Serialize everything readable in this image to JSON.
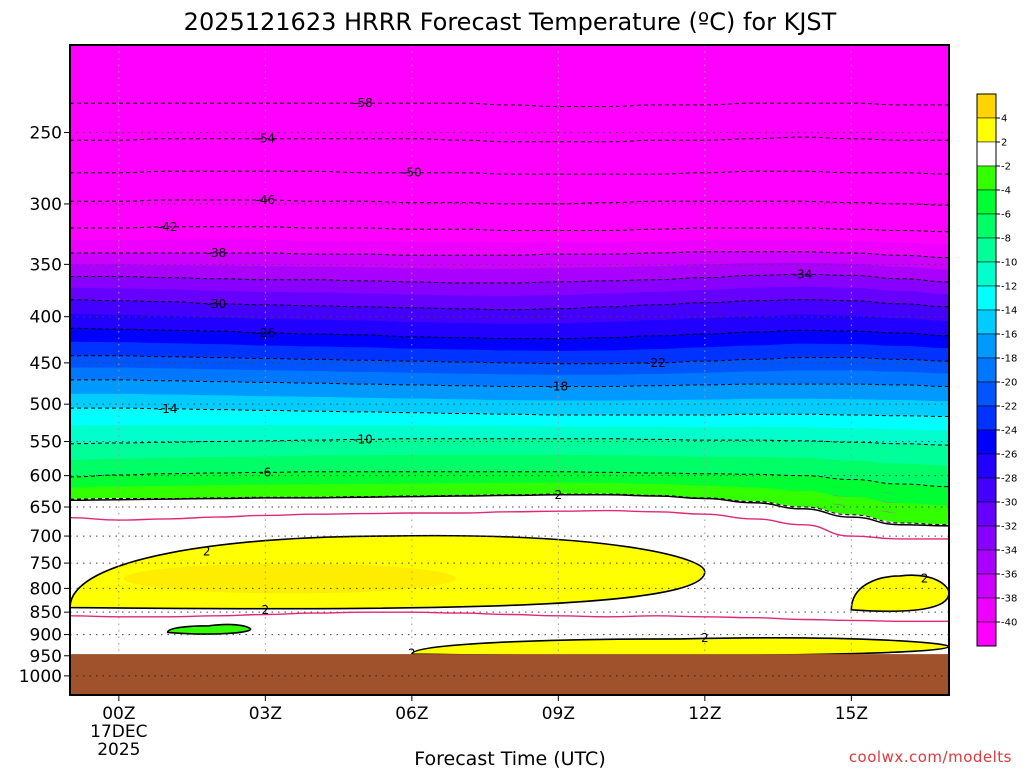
{
  "title": "2025121623 HRRR Forecast Temperature (ºC) for KJST",
  "credit": "coolwx.com/modelts",
  "chart_data": {
    "type": "heatmap",
    "title": "2025121623 HRRR Forecast Temperature (ºC) for KJST",
    "xlabel": "Forecast Time (UTC)",
    "ylabel": "",
    "x_ticks": [
      {
        "hour": 0,
        "label": "00Z",
        "sub": [
          "17DEC",
          "2025"
        ]
      },
      {
        "hour": 3,
        "label": "03Z",
        "sub": []
      },
      {
        "hour": 6,
        "label": "06Z",
        "sub": []
      },
      {
        "hour": 9,
        "label": "09Z",
        "sub": []
      },
      {
        "hour": 12,
        "label": "12Z",
        "sub": []
      },
      {
        "hour": 15,
        "label": "15Z",
        "sub": []
      }
    ],
    "x_range_hours": [
      -1,
      17
    ],
    "y_ticks": [
      250,
      300,
      350,
      400,
      450,
      500,
      550,
      600,
      650,
      700,
      750,
      800,
      850,
      900,
      950,
      1000
    ],
    "y_range_hPa": [
      200,
      1050
    ],
    "y_scale": "log-pressure",
    "ground_level_hPa": 946,
    "hours": [
      -1,
      0,
      1,
      2,
      3,
      4,
      5,
      6,
      7,
      8,
      9,
      10,
      11,
      12,
      13,
      14,
      15,
      16,
      17
    ],
    "contour_levels": [
      {
        "value": -58,
        "p": [
          232,
          232,
          232,
          232,
          232,
          232,
          232,
          232,
          232,
          233,
          234,
          234,
          233,
          233,
          232,
          232,
          232,
          233,
          233
        ],
        "label_hour": 5
      },
      {
        "value": -54,
        "p": [
          255,
          255,
          254,
          254,
          254,
          254,
          254,
          254,
          255,
          256,
          256,
          256,
          255,
          255,
          254,
          253,
          254,
          255,
          255
        ],
        "label_hour": 3
      },
      {
        "value": -50,
        "p": [
          277,
          277,
          276,
          276,
          276,
          276,
          277,
          277,
          277,
          278,
          278,
          278,
          278,
          277,
          276,
          276,
          277,
          277,
          278
        ],
        "label_hour": 6
      },
      {
        "value": -46,
        "p": [
          298,
          298,
          297,
          297,
          297,
          298,
          298,
          299,
          299,
          300,
          300,
          299,
          298,
          298,
          298,
          298,
          299,
          300,
          301
        ],
        "label_hour": 3
      },
      {
        "value": -42,
        "p": [
          319,
          319,
          318,
          318,
          318,
          319,
          319,
          320,
          320,
          321,
          321,
          321,
          320,
          319,
          319,
          319,
          320,
          321,
          322
        ],
        "label_hour": 1
      },
      {
        "value": -38,
        "p": [
          340,
          340,
          340,
          340,
          340,
          341,
          341,
          342,
          342,
          342,
          341,
          341,
          340,
          339,
          339,
          339,
          340,
          342,
          344
        ],
        "label_hour": 2
      },
      {
        "value": -34,
        "p": [
          361,
          361,
          362,
          363,
          364,
          364,
          365,
          366,
          367,
          367,
          366,
          365,
          364,
          362,
          360,
          359,
          360,
          363,
          366
        ],
        "label_hour": 14
      },
      {
        "value": -30,
        "p": [
          383,
          384,
          385,
          387,
          388,
          389,
          390,
          391,
          392,
          393,
          392,
          390,
          388,
          386,
          384,
          383,
          384,
          387,
          390
        ],
        "label_hour": 2
      },
      {
        "value": -26,
        "p": [
          412,
          413,
          414,
          415,
          417,
          418,
          419,
          421,
          422,
          423,
          423,
          422,
          420,
          418,
          416,
          414,
          415,
          417,
          420
        ],
        "label_hour": 3
      },
      {
        "value": -22,
        "p": [
          442,
          442,
          443,
          444,
          445,
          446,
          447,
          448,
          449,
          450,
          451,
          451,
          450,
          448,
          446,
          444,
          444,
          446,
          448
        ],
        "label_hour": 11
      },
      {
        "value": -18,
        "p": [
          470,
          470,
          471,
          472,
          473,
          474,
          475,
          476,
          477,
          478,
          478,
          478,
          477,
          476,
          475,
          475,
          475,
          476,
          478
        ],
        "label_hour": 9
      },
      {
        "value": -14,
        "p": [
          505,
          505,
          506,
          507,
          508,
          509,
          510,
          511,
          512,
          513,
          514,
          514,
          514,
          514,
          513,
          513,
          514,
          515,
          516
        ],
        "label_hour": 1
      },
      {
        "value": -10,
        "p": [
          553,
          552,
          551,
          550,
          549,
          548,
          547,
          546,
          546,
          546,
          546,
          546,
          547,
          548,
          548,
          549,
          551,
          553,
          555
        ],
        "label_hour": 5
      },
      {
        "value": -6,
        "p": [
          602,
          599,
          597,
          596,
          595,
          594,
          594,
          594,
          594,
          594,
          594,
          595,
          596,
          597,
          598,
          600,
          606,
          613,
          617
        ],
        "label_hour": 3
      },
      {
        "value": -2,
        "p": [
          637,
          636,
          636,
          635,
          634,
          634,
          633,
          632,
          631,
          630,
          629,
          629,
          631,
          635,
          641,
          650,
          663,
          677,
          680
        ],
        "label_hour": null
      },
      {
        "value": 2,
        "p": [
          639,
          638,
          637,
          636,
          635,
          635,
          634,
          633,
          632,
          631,
          630,
          630,
          632,
          636,
          643,
          653,
          667,
          680,
          682
        ],
        "label_hour": 9
      }
    ],
    "freezing_isotherm_0C": [
      {
        "segment": "upper",
        "p": [
          668,
          672,
          670,
          667,
          664,
          662,
          661,
          660,
          660,
          658,
          657,
          656,
          658,
          662,
          670,
          680,
          700,
          705,
          705
        ]
      },
      {
        "segment": "lower",
        "p": [
          858,
          860,
          860,
          858,
          855,
          852,
          850,
          850,
          852,
          855,
          858,
          860,
          858,
          860,
          862,
          866,
          868,
          870,
          870
        ]
      }
    ],
    "features": [
      {
        "name": "warm layer above 2C (0-2C to +4C band)",
        "range_C": [
          2,
          4
        ],
        "hour_span": [
          -1,
          12
        ],
        "p_bottom": 840,
        "p_top": 700
      },
      {
        "name": "warm patch above 2C",
        "range_C": [
          2,
          4
        ],
        "hour_span": [
          15,
          17
        ],
        "p_bottom": 845,
        "p_top": 775
      },
      {
        "name": "near-surface warm layer above 2C",
        "range_C": [
          2,
          4
        ],
        "hour_span": [
          6,
          17
        ],
        "p_bottom": 946,
        "p_top": 910
      },
      {
        "name": "cold pocket below -2C",
        "range_C": [
          -4,
          -2
        ],
        "hour_span": [
          1,
          2.7
        ],
        "p_bottom": 895,
        "p_top": 880
      }
    ],
    "colorbar": {
      "ticks": [
        4,
        2,
        -2,
        -4,
        -6,
        -8,
        -10,
        -12,
        -14,
        -16,
        -18,
        -20,
        -22,
        -24,
        -26,
        -28,
        -30,
        -32,
        -34,
        -36,
        -38,
        -40
      ],
      "bands": [
        {
          "from": 4,
          "to": 6,
          "color": "#ffd400"
        },
        {
          "from": 2,
          "to": 4,
          "color": "#ffff00"
        },
        {
          "from": -2,
          "to": 2,
          "color": "#ffffff"
        },
        {
          "from": -4,
          "to": -2,
          "color": "#32ff00"
        },
        {
          "from": -6,
          "to": -4,
          "color": "#00ff32"
        },
        {
          "from": -8,
          "to": -6,
          "color": "#00ff66"
        },
        {
          "from": -10,
          "to": -8,
          "color": "#00ff99"
        },
        {
          "from": -12,
          "to": -10,
          "color": "#00ffcc"
        },
        {
          "from": -14,
          "to": -12,
          "color": "#00ffff"
        },
        {
          "from": -16,
          "to": -14,
          "color": "#00ccff"
        },
        {
          "from": -18,
          "to": -16,
          "color": "#0099ff"
        },
        {
          "from": -20,
          "to": -18,
          "color": "#0077ff"
        },
        {
          "from": -22,
          "to": -20,
          "color": "#0055ff"
        },
        {
          "from": -24,
          "to": -22,
          "color": "#0033ff"
        },
        {
          "from": -26,
          "to": -24,
          "color": "#0000ff"
        },
        {
          "from": -28,
          "to": -26,
          "color": "#2200ff"
        },
        {
          "from": -30,
          "to": -28,
          "color": "#4400ff"
        },
        {
          "from": -32,
          "to": -30,
          "color": "#6600ff"
        },
        {
          "from": -34,
          "to": -32,
          "color": "#8800ff"
        },
        {
          "from": -36,
          "to": -34,
          "color": "#aa00ff"
        },
        {
          "from": -38,
          "to": -36,
          "color": "#cc00ff"
        },
        {
          "from": -40,
          "to": -38,
          "color": "#ee00ff"
        },
        {
          "from": -42,
          "to": -40,
          "color": "#ff00ff"
        }
      ]
    },
    "colors": {
      "below_-40": "#ff00ff",
      "warm_deep": "#ffd400",
      "ground": "#a0522d",
      "freezing_line": "#e0287a",
      "contour": "#000000"
    },
    "grid": true,
    "legend": "colorbar-right"
  }
}
